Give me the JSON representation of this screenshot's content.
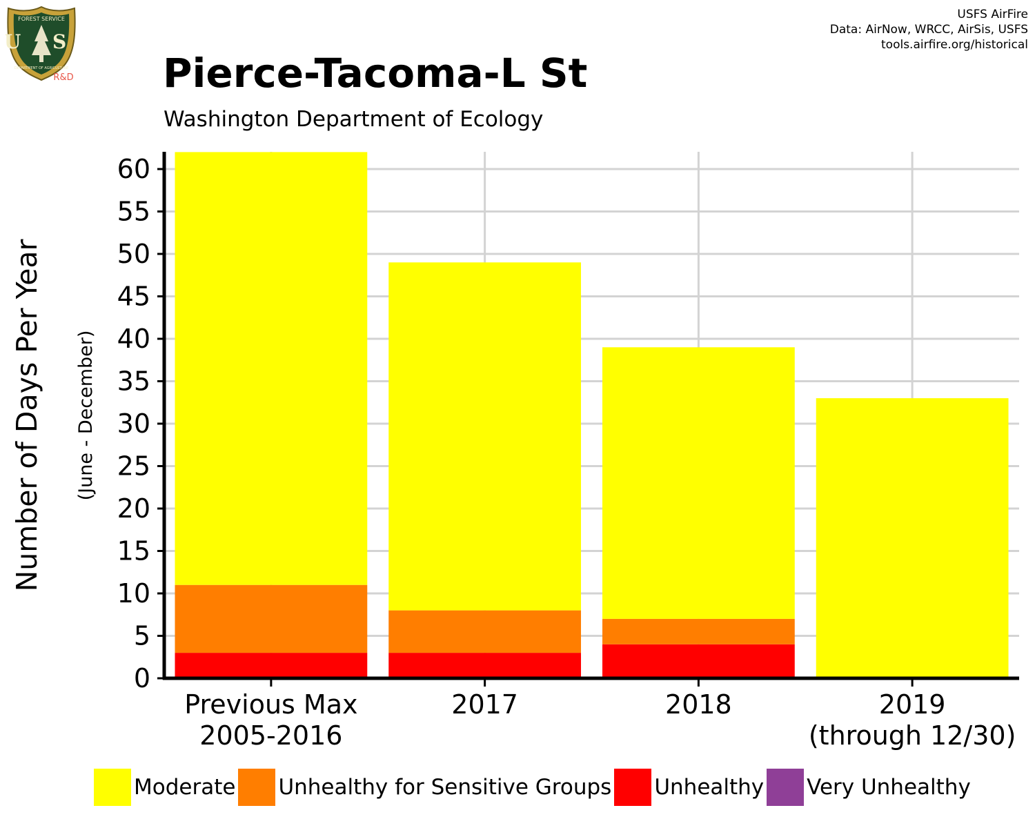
{
  "header": {
    "title": "Pierce-Tacoma-L St",
    "subtitle": "Washington Department of Ecology",
    "credits": [
      "USFS AirFire",
      "Data: AirNow, WRCC, AirSis, USFS",
      "tools.airfire.org/historical"
    ]
  },
  "logo": {
    "icon": "usfs-shield-icon",
    "top_text": "FOREST SERVICE",
    "center_text": "U S",
    "bottom_text": "DEPARTMENT OF AGRICULTURE",
    "badge": "R&D"
  },
  "chart_data": {
    "type": "bar",
    "stacked": true,
    "ylabel": "Number of Days Per Year",
    "ylabel_sub": "(June - December)",
    "xlabel": "",
    "ylim": [
      0,
      62
    ],
    "yticks": [
      0,
      5,
      10,
      15,
      20,
      25,
      30,
      35,
      40,
      45,
      50,
      55,
      60
    ],
    "grid": true,
    "legend_position": "bottom",
    "categories": [
      [
        "Previous Max",
        "2005-2016"
      ],
      [
        "2017"
      ],
      [
        "2018"
      ],
      [
        "2019",
        "(through 12/30)"
      ]
    ],
    "series": [
      {
        "name": "Unhealthy",
        "color": "#FF0000",
        "values": [
          3,
          3,
          4,
          0
        ]
      },
      {
        "name": "Unhealthy for Sensitive Groups",
        "color": "#FF7E00",
        "values": [
          8,
          5,
          3,
          0
        ]
      },
      {
        "name": "Moderate",
        "color": "#FFFF00",
        "values": [
          51,
          41,
          32,
          33
        ]
      },
      {
        "name": "Very Unhealthy",
        "color": "#8F3F97",
        "values": [
          0,
          0,
          0,
          0
        ]
      }
    ],
    "legend": [
      {
        "label": "Moderate",
        "color": "#FFFF00"
      },
      {
        "label": "Unhealthy for Sensitive Groups",
        "color": "#FF7E00"
      },
      {
        "label": "Unhealthy",
        "color": "#FF0000"
      },
      {
        "label": "Very Unhealthy",
        "color": "#8F3F97"
      }
    ]
  }
}
